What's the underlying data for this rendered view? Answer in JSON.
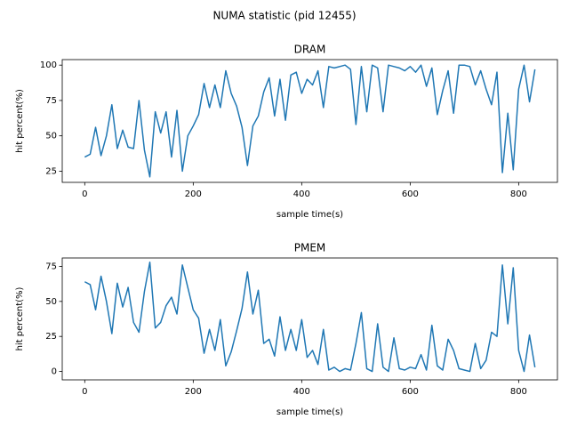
{
  "title": "NUMA statistic (pid 12455)",
  "chart_data": [
    {
      "type": "line",
      "title": "DRAM",
      "xlabel": "sample time(s)",
      "ylabel": "hit percent(%)",
      "color": "#1f77b4",
      "xlim": [
        -41.5,
        871.5
      ],
      "ylim": [
        17.1,
        103.9
      ],
      "xticks": [
        0,
        200,
        400,
        600,
        800
      ],
      "yticks": [
        25,
        50,
        75,
        100
      ],
      "x": [
        0,
        10,
        20,
        30,
        40,
        50,
        60,
        70,
        80,
        90,
        100,
        110,
        120,
        130,
        140,
        150,
        160,
        170,
        180,
        190,
        200,
        210,
        220,
        230,
        240,
        250,
        260,
        270,
        280,
        290,
        300,
        310,
        320,
        330,
        340,
        350,
        360,
        370,
        380,
        390,
        400,
        410,
        420,
        430,
        440,
        450,
        460,
        470,
        480,
        490,
        500,
        510,
        520,
        530,
        540,
        550,
        560,
        570,
        580,
        590,
        600,
        610,
        620,
        630,
        640,
        650,
        660,
        670,
        680,
        690,
        700,
        710,
        720,
        730,
        740,
        750,
        760,
        770,
        780,
        790,
        800,
        810,
        820,
        830
      ],
      "values": [
        35,
        37,
        56,
        36,
        50,
        72,
        41,
        54,
        42,
        41,
        75,
        40,
        21,
        67,
        52,
        67,
        35,
        68,
        25,
        50,
        57,
        65,
        87,
        70,
        86,
        70,
        96,
        80,
        71,
        56,
        29,
        57,
        64,
        81,
        91,
        64,
        90,
        61,
        93,
        95,
        80,
        90,
        86,
        96,
        70,
        99,
        98,
        99,
        100,
        97,
        58,
        99,
        67,
        100,
        98,
        67,
        100,
        99,
        98,
        96,
        99,
        95,
        100,
        85,
        98,
        65,
        82,
        96,
        66,
        100,
        100,
        99,
        86,
        96,
        83,
        72,
        95,
        24,
        66,
        26,
        83,
        100,
        74,
        97
      ]
    },
    {
      "type": "line",
      "title": "PMEM",
      "xlabel": "sample time(s)",
      "ylabel": "hit percent(%)",
      "color": "#1f77b4",
      "xlim": [
        -41.5,
        871.5
      ],
      "ylim": [
        -6,
        81
      ],
      "xticks": [
        0,
        200,
        400,
        600,
        800
      ],
      "yticks": [
        0,
        25,
        50,
        75
      ],
      "x": [
        0,
        10,
        20,
        30,
        40,
        50,
        60,
        70,
        80,
        90,
        100,
        110,
        120,
        130,
        140,
        150,
        160,
        170,
        180,
        190,
        200,
        210,
        220,
        230,
        240,
        250,
        260,
        270,
        280,
        290,
        300,
        310,
        320,
        330,
        340,
        350,
        360,
        370,
        380,
        390,
        400,
        410,
        420,
        430,
        440,
        450,
        460,
        470,
        480,
        490,
        500,
        510,
        520,
        530,
        540,
        550,
        560,
        570,
        580,
        590,
        600,
        610,
        620,
        630,
        640,
        650,
        660,
        670,
        680,
        690,
        700,
        710,
        720,
        730,
        740,
        750,
        760,
        770,
        780,
        790,
        800,
        810,
        820,
        830
      ],
      "values": [
        64,
        62,
        44,
        68,
        50,
        27,
        63,
        46,
        60,
        35,
        28,
        57,
        78,
        31,
        35,
        47,
        53,
        41,
        76,
        60,
        44,
        38,
        13,
        30,
        15,
        37,
        4,
        14,
        29,
        45,
        71,
        41,
        58,
        20,
        23,
        11,
        39,
        15,
        30,
        15,
        37,
        10,
        15,
        5,
        30,
        1,
        3,
        0,
        2,
        1,
        20,
        42,
        2,
        0,
        34,
        3,
        0,
        24,
        2,
        1,
        3,
        2,
        12,
        1,
        33,
        4,
        1,
        23,
        15,
        2,
        1,
        0,
        20,
        2,
        8,
        28,
        25,
        76,
        34,
        74,
        15,
        0,
        26,
        3
      ]
    }
  ]
}
